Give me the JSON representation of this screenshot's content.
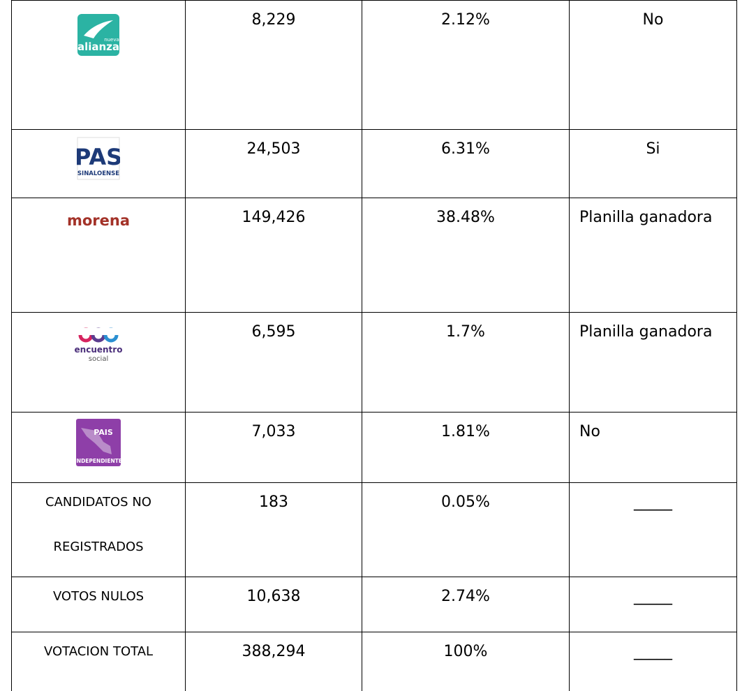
{
  "table": {
    "rows": [
      [
        [
          "nueva",
          "alianza"
        ],
        "8,229",
        "2.12%",
        "No"
      ],
      [
        [
          "PAS",
          "SINALOENSE"
        ],
        "24,503",
        "6.31%",
        "Si"
      ],
      [
        [
          "morena"
        ],
        "149,426",
        "38.48%",
        "Planilla ganadora"
      ],
      [
        [
          "encuentro",
          "social"
        ],
        "6,595",
        "1.7%",
        "Planilla ganadora"
      ],
      [
        [
          "PAIS",
          "INDEPENDIENTE"
        ],
        "7,033",
        "1.81%",
        "No"
      ],
      [
        "CANDIDATOS NO REGISTRADOS",
        "183",
        "0.05%",
        "_____"
      ],
      [
        "VOTOS NULOS",
        "10,638",
        "2.74%",
        "_____"
      ],
      [
        "VOTACION TOTAL",
        "388,294",
        "100%",
        "_____"
      ]
    ]
  }
}
